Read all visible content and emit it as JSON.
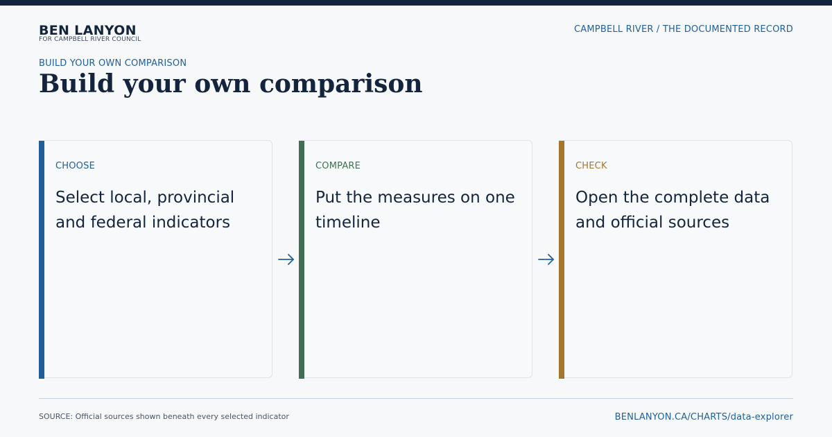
{
  "header": {
    "brand_name": "BEN LANYON",
    "brand_subtitle": "FOR CAMPBELL RIVER COUNCIL",
    "section_link": "CAMPBELL RIVER / THE DOCUMENTED RECORD"
  },
  "hero": {
    "eyebrow": "BUILD YOUR OWN COMPARISON",
    "title": "Build your own comparison"
  },
  "steps": [
    {
      "kicker": "CHOOSE",
      "text": "Select local, provincial and federal indicators",
      "accent_color": "#1f5e9b"
    },
    {
      "kicker": "COMPARE",
      "text": "Put the measures on one timeline",
      "accent_color": "#3f6f55"
    },
    {
      "kicker": "CHECK",
      "text": "Open the complete data and official sources",
      "accent_color": "#a8762b"
    }
  ],
  "footer": {
    "source": "SOURCE: Official sources shown beneath every selected indicator",
    "link": "BENLANYON.CA/CHARTS/data-explorer"
  },
  "colors": {
    "navy": "#15243d",
    "link_blue": "#22609a",
    "background": "#f6f8fa"
  },
  "icons": {
    "step_arrow": "arrow-right-icon"
  }
}
